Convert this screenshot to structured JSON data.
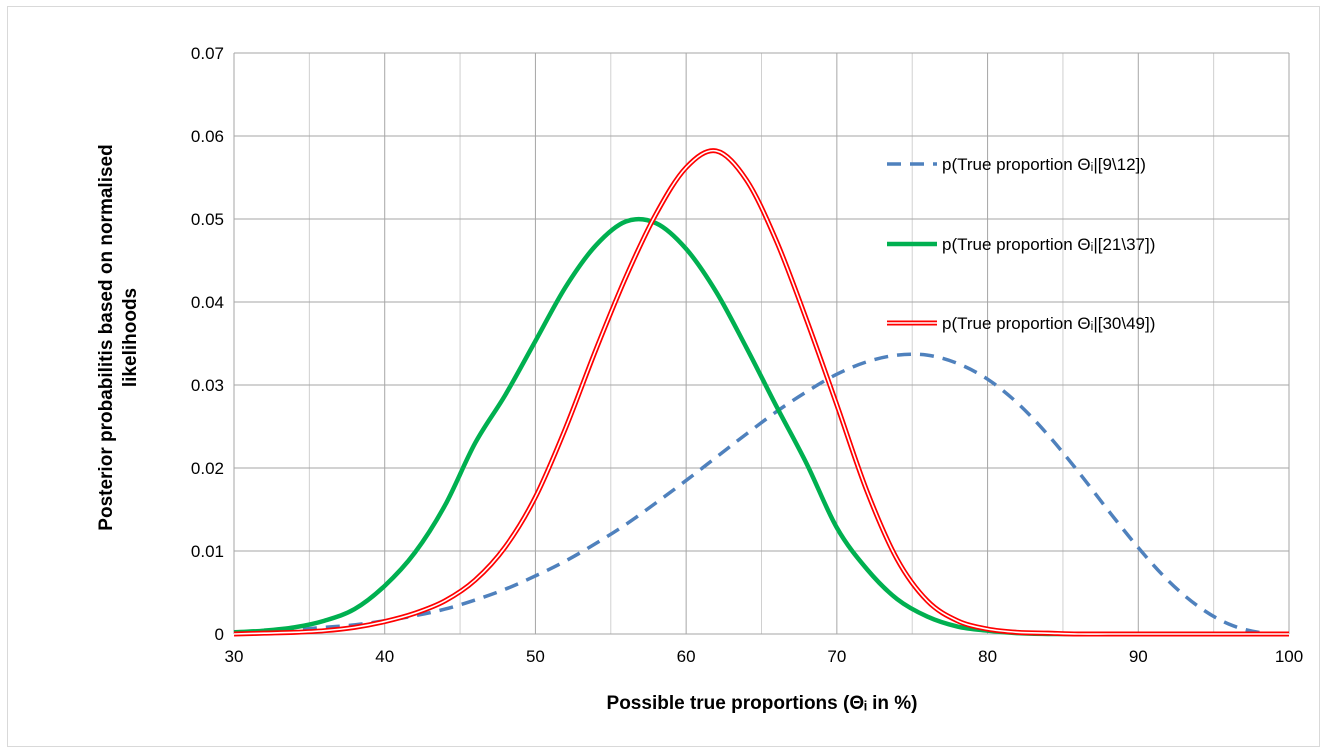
{
  "chart_data": {
    "type": "line",
    "xlabel": "Possible true proportions (Θᵢ in %)",
    "ylabel": "Posterior probabilitis based on normalised likelihoods",
    "xlim": [
      30,
      100
    ],
    "ylim": [
      0,
      0.07
    ],
    "xticks": [
      "30",
      "40",
      "50",
      "60",
      "70",
      "80",
      "90",
      "100"
    ],
    "yticks": [
      "0",
      "0.01",
      "0.02",
      "0.03",
      "0.04",
      "0.05",
      "0.06",
      "0.07"
    ],
    "grid": true,
    "legend_position": "right",
    "x": [
      30,
      32,
      34,
      36,
      38,
      40,
      42,
      44,
      46,
      48,
      50,
      52,
      54,
      56,
      58,
      60,
      62,
      64,
      66,
      68,
      70,
      72,
      74,
      76,
      78,
      80,
      82,
      84,
      86,
      88,
      90,
      92,
      94,
      96,
      98,
      100
    ],
    "series": [
      {
        "name": "p(True proportion Θᵢ|[9\\12])",
        "style": "dashed",
        "color": "#4f81bd",
        "values": [
          0.0002,
          0.0003,
          0.0005,
          0.0008,
          0.0011,
          0.0016,
          0.0022,
          0.003,
          0.0041,
          0.0054,
          0.007,
          0.0088,
          0.0109,
          0.0132,
          0.0158,
          0.0185,
          0.0213,
          0.0241,
          0.0268,
          0.0292,
          0.0313,
          0.0328,
          0.0336,
          0.0336,
          0.0326,
          0.0307,
          0.0278,
          0.024,
          0.0196,
          0.0149,
          0.0104,
          0.0064,
          0.0033,
          0.0012,
          0.0002,
          0.0
        ]
      },
      {
        "name": "p(True proportion Θᵢ|[21\\37])",
        "style": "solid-thick",
        "color": "#00b050",
        "values": [
          0.0002,
          0.0004,
          0.0008,
          0.0016,
          0.003,
          0.0058,
          0.0098,
          0.0155,
          0.023,
          0.0288,
          0.0353,
          0.0418,
          0.0468,
          0.0497,
          0.0495,
          0.0464,
          0.0412,
          0.0345,
          0.0274,
          0.0205,
          0.0128,
          0.0078,
          0.0042,
          0.0021,
          0.0009,
          0.0004,
          0.0001,
          0.0,
          0.0,
          0.0,
          0.0,
          0.0,
          0.0,
          0.0,
          0.0,
          0.0
        ]
      },
      {
        "name": "p(True proportion Θᵢ|[30\\49])",
        "style": "double",
        "color": "#ff0000",
        "values": [
          0.0,
          0.0001,
          0.0002,
          0.0004,
          0.0008,
          0.0015,
          0.0025,
          0.004,
          0.0065,
          0.0105,
          0.0165,
          0.0248,
          0.0342,
          0.043,
          0.0506,
          0.0562,
          0.0582,
          0.0547,
          0.0473,
          0.0378,
          0.0276,
          0.0172,
          0.009,
          0.004,
          0.0016,
          0.0006,
          0.0002,
          0.0001,
          0.0,
          0.0,
          0.0,
          0.0,
          0.0,
          0.0,
          0.0,
          0.0
        ]
      }
    ]
  }
}
